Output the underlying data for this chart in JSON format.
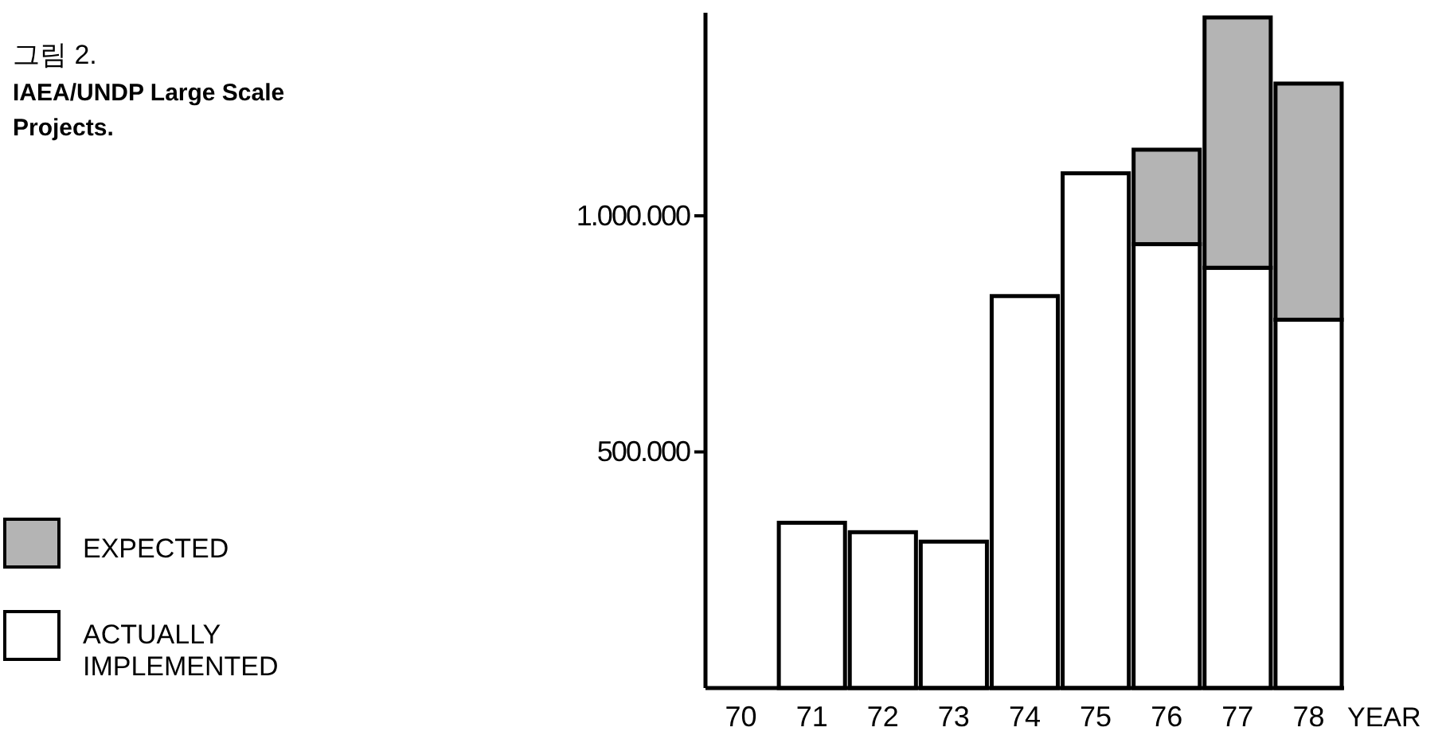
{
  "chart_data": {
    "type": "bar",
    "title": "그림 2.",
    "subtitle": "IAEA/UNDP Large Scale Projects.",
    "xlabel": "YEAR",
    "categories": [
      "70",
      "71",
      "72",
      "73",
      "74",
      "75",
      "76",
      "77",
      "78"
    ],
    "stacked": true,
    "series": [
      {
        "name": "ACTUALLY IMPLEMENTED",
        "color": "#ffffff",
        "values": [
          null,
          350000,
          330000,
          310000,
          830000,
          1090000,
          940000,
          890000,
          780000
        ]
      },
      {
        "name": "EXPECTED",
        "color": "#b4b4b4",
        "values": [
          null,
          null,
          null,
          null,
          null,
          null,
          200000,
          530000,
          500000
        ]
      }
    ],
    "ylim": [
      0,
      1430000
    ],
    "yticks": [
      {
        "value": 500000,
        "label": "500.000"
      },
      {
        "value": 1000000,
        "label": "1.000.000"
      }
    ],
    "grid": false,
    "legend": "left"
  }
}
